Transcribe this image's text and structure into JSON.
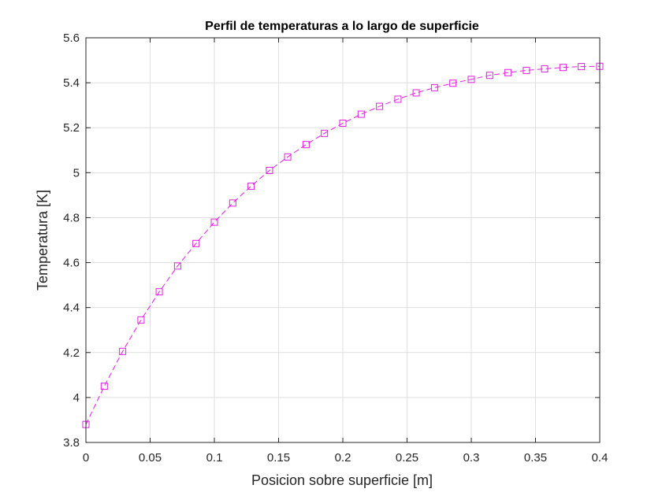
{
  "chart_data": {
    "type": "line",
    "title": "Perfil de temperaturas a lo largo de superficie",
    "xlabel": "Posicion sobre superficie [m]",
    "ylabel": "Temperatura [K]",
    "xlim": [
      0,
      0.4
    ],
    "ylim": [
      3.8,
      5.6
    ],
    "xticks": [
      0,
      0.05,
      0.1,
      0.15,
      0.2,
      0.25,
      0.3,
      0.35,
      0.4
    ],
    "xtick_labels": [
      "0",
      "0.05",
      "0.1",
      "0.15",
      "0.2",
      "0.25",
      "0.3",
      "0.35",
      "0.4"
    ],
    "yticks": [
      3.8,
      4,
      4.2,
      4.4,
      4.6,
      4.8,
      5,
      5.2,
      5.4,
      5.6
    ],
    "ytick_labels": [
      "3.8",
      "4",
      "4.2",
      "4.4",
      "4.6",
      "4.8",
      "5",
      "5.2",
      "5.4",
      "5.6"
    ],
    "grid": true,
    "series": [
      {
        "color": "#e020e0",
        "line_style": "dashed",
        "marker": "square",
        "x": [
          0,
          0.0143,
          0.0286,
          0.0429,
          0.0571,
          0.0714,
          0.0857,
          0.1,
          0.1143,
          0.1286,
          0.1429,
          0.1571,
          0.1714,
          0.1857,
          0.2,
          0.2143,
          0.2286,
          0.2429,
          0.2571,
          0.2714,
          0.2857,
          0.3,
          0.3143,
          0.3286,
          0.3429,
          0.3571,
          0.3714,
          0.3857,
          0.4
        ],
        "y": [
          3.88,
          4.05,
          4.205,
          4.345,
          4.47,
          4.585,
          4.685,
          4.78,
          4.865,
          4.94,
          5.01,
          5.07,
          5.125,
          5.175,
          5.22,
          5.26,
          5.295,
          5.327,
          5.355,
          5.378,
          5.398,
          5.415,
          5.433,
          5.445,
          5.455,
          5.462,
          5.468,
          5.472,
          5.473
        ]
      }
    ]
  }
}
